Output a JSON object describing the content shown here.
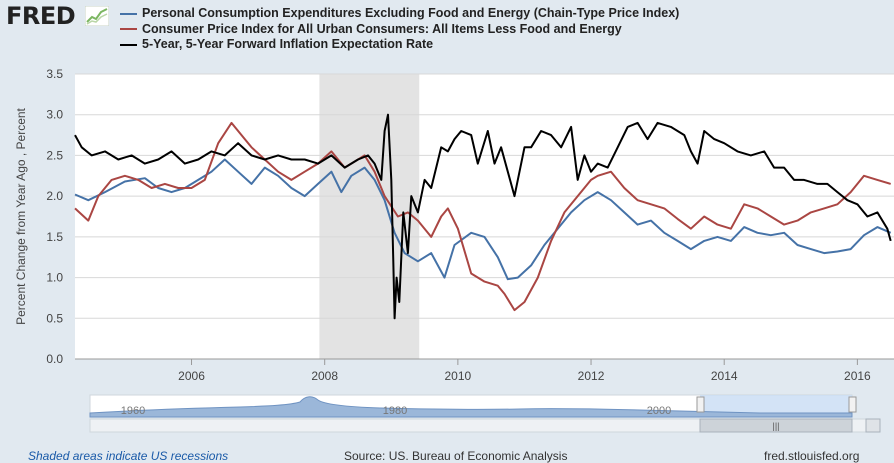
{
  "header": {
    "logo_text": "FRED",
    "logo_icon": "line-chart-icon"
  },
  "legend": [
    {
      "label": "Personal Consumption Expenditures Excluding Food and Energy (Chain-Type Price Index)",
      "color": "#4572a7"
    },
    {
      "label": "Consumer Price Index for All Urban Consumers: All Items Less Food and Energy",
      "color": "#aa4643"
    },
    {
      "label": "5-Year, 5-Year Forward Inflation Expectation Rate",
      "color": "#000000"
    }
  ],
  "chart_data": {
    "type": "line",
    "ylabel": "Percent Change from Year Ago , Percent",
    "ylim": [
      0,
      3.5
    ],
    "yticks": [
      "0.0",
      "0.5",
      "1.0",
      "1.5",
      "2.0",
      "2.5",
      "3.0",
      "3.5"
    ],
    "xlim": [
      2004.25,
      2016.55
    ],
    "xticks": [
      "2006",
      "2008",
      "2010",
      "2012",
      "2014",
      "2016"
    ],
    "grid": true,
    "recession": {
      "start": 2007.92,
      "end": 2009.42,
      "color": "#e3e3e3"
    },
    "series": [
      {
        "name": "Personal Consumption Expenditures Excluding Food and Energy (Chain-Type Price Index)",
        "color": "#4572a7",
        "x": [
          2004.25,
          2004.45,
          2004.7,
          2005.0,
          2005.3,
          2005.5,
          2005.7,
          2005.9,
          2006.1,
          2006.3,
          2006.5,
          2006.7,
          2006.9,
          2007.1,
          2007.3,
          2007.5,
          2007.7,
          2007.9,
          2008.1,
          2008.25,
          2008.4,
          2008.6,
          2008.75,
          2008.9,
          2009.05,
          2009.2,
          2009.4,
          2009.6,
          2009.8,
          2009.95,
          2010.2,
          2010.4,
          2010.6,
          2010.75,
          2010.9,
          2011.1,
          2011.3,
          2011.5,
          2011.7,
          2011.9,
          2012.1,
          2012.3,
          2012.5,
          2012.7,
          2012.9,
          2013.1,
          2013.3,
          2013.5,
          2013.7,
          2013.9,
          2014.1,
          2014.3,
          2014.5,
          2014.7,
          2014.9,
          2015.1,
          2015.3,
          2015.5,
          2015.7,
          2015.9,
          2016.1,
          2016.3,
          2016.5
        ],
        "values": [
          2.02,
          1.95,
          2.05,
          2.18,
          2.22,
          2.1,
          2.05,
          2.1,
          2.2,
          2.3,
          2.45,
          2.3,
          2.15,
          2.35,
          2.25,
          2.1,
          2.0,
          2.15,
          2.3,
          2.05,
          2.25,
          2.35,
          2.2,
          1.95,
          1.55,
          1.3,
          1.2,
          1.3,
          1.0,
          1.4,
          1.55,
          1.5,
          1.25,
          0.98,
          1.0,
          1.15,
          1.4,
          1.6,
          1.8,
          1.95,
          2.05,
          1.95,
          1.8,
          1.65,
          1.7,
          1.55,
          1.45,
          1.35,
          1.45,
          1.5,
          1.45,
          1.62,
          1.55,
          1.52,
          1.55,
          1.4,
          1.35,
          1.3,
          1.32,
          1.35,
          1.52,
          1.62,
          1.55
        ]
      },
      {
        "name": "Consumer Price Index for All Urban Consumers: All Items Less Food and Energy",
        "color": "#aa4643",
        "x": [
          2004.25,
          2004.45,
          2004.6,
          2004.8,
          2005.0,
          2005.2,
          2005.4,
          2005.6,
          2005.8,
          2006.0,
          2006.2,
          2006.4,
          2006.6,
          2006.8,
          2006.9,
          2007.1,
          2007.3,
          2007.5,
          2007.7,
          2007.9,
          2008.1,
          2008.3,
          2008.5,
          2008.6,
          2008.75,
          2008.9,
          2009.1,
          2009.25,
          2009.4,
          2009.6,
          2009.75,
          2009.85,
          2010.0,
          2010.2,
          2010.4,
          2010.6,
          2010.7,
          2010.85,
          2011.0,
          2011.2,
          2011.4,
          2011.6,
          2011.8,
          2012.0,
          2012.1,
          2012.3,
          2012.5,
          2012.7,
          2012.9,
          2013.1,
          2013.3,
          2013.5,
          2013.7,
          2013.9,
          2014.1,
          2014.3,
          2014.5,
          2014.7,
          2014.9,
          2015.1,
          2015.3,
          2015.5,
          2015.7,
          2015.9,
          2016.1,
          2016.3,
          2016.5
        ],
        "values": [
          1.85,
          1.7,
          2.0,
          2.2,
          2.25,
          2.2,
          2.1,
          2.15,
          2.1,
          2.1,
          2.2,
          2.65,
          2.9,
          2.7,
          2.6,
          2.45,
          2.3,
          2.2,
          2.3,
          2.4,
          2.55,
          2.35,
          2.45,
          2.5,
          2.3,
          2.0,
          1.75,
          1.8,
          1.7,
          1.5,
          1.75,
          1.85,
          1.6,
          1.05,
          0.95,
          0.9,
          0.8,
          0.6,
          0.7,
          1.0,
          1.45,
          1.8,
          2.0,
          2.2,
          2.25,
          2.3,
          2.1,
          1.95,
          1.9,
          1.85,
          1.72,
          1.6,
          1.75,
          1.65,
          1.6,
          1.9,
          1.85,
          1.75,
          1.65,
          1.7,
          1.8,
          1.85,
          1.9,
          2.05,
          2.25,
          2.2,
          2.15
        ]
      },
      {
        "name": "5-Year, 5-Year Forward Inflation Expectation Rate",
        "color": "#000000",
        "x": [
          2004.25,
          2004.35,
          2004.5,
          2004.7,
          2004.9,
          2005.1,
          2005.3,
          2005.5,
          2005.7,
          2005.9,
          2006.1,
          2006.3,
          2006.5,
          2006.7,
          2006.9,
          2007.1,
          2007.3,
          2007.5,
          2007.7,
          2007.9,
          2008.1,
          2008.3,
          2008.5,
          2008.65,
          2008.75,
          2008.85,
          2008.9,
          2008.95,
          2009.0,
          2009.03,
          2009.05,
          2009.08,
          2009.12,
          2009.18,
          2009.25,
          2009.3,
          2009.4,
          2009.5,
          2009.6,
          2009.75,
          2009.85,
          2009.95,
          2010.05,
          2010.2,
          2010.3,
          2010.45,
          2010.55,
          2010.65,
          2010.75,
          2010.85,
          2011.0,
          2011.1,
          2011.25,
          2011.4,
          2011.55,
          2011.7,
          2011.8,
          2011.9,
          2012.0,
          2012.1,
          2012.25,
          2012.4,
          2012.55,
          2012.7,
          2012.85,
          2013.0,
          2013.2,
          2013.4,
          2013.5,
          2013.6,
          2013.7,
          2013.85,
          2014.0,
          2014.2,
          2014.4,
          2014.6,
          2014.75,
          2014.9,
          2015.05,
          2015.2,
          2015.4,
          2015.55,
          2015.7,
          2015.85,
          2016.0,
          2016.15,
          2016.3,
          2016.45,
          2016.5
        ],
        "values": [
          2.75,
          2.6,
          2.5,
          2.55,
          2.45,
          2.5,
          2.4,
          2.45,
          2.55,
          2.4,
          2.45,
          2.55,
          2.5,
          2.65,
          2.5,
          2.45,
          2.5,
          2.45,
          2.45,
          2.4,
          2.5,
          2.35,
          2.45,
          2.5,
          2.4,
          2.2,
          2.8,
          3.0,
          2.2,
          1.2,
          0.5,
          1.0,
          0.7,
          1.8,
          1.3,
          2.0,
          1.8,
          2.2,
          2.1,
          2.6,
          2.55,
          2.7,
          2.8,
          2.75,
          2.4,
          2.8,
          2.4,
          2.6,
          2.3,
          2.0,
          2.6,
          2.6,
          2.8,
          2.75,
          2.6,
          2.85,
          2.2,
          2.5,
          2.3,
          2.4,
          2.35,
          2.6,
          2.85,
          2.9,
          2.7,
          2.9,
          2.85,
          2.75,
          2.55,
          2.4,
          2.8,
          2.7,
          2.65,
          2.55,
          2.5,
          2.55,
          2.35,
          2.35,
          2.2,
          2.2,
          2.15,
          2.15,
          2.05,
          1.95,
          1.9,
          1.75,
          1.8,
          1.6,
          1.45
        ]
      }
    ]
  },
  "navigator": {
    "labels": [
      "1960",
      "1980",
      "2000"
    ],
    "scroll_grip": "|||"
  },
  "footer": {
    "note": "Shaded areas indicate US recessions",
    "source": "Source: US. Bureau of Economic Analysis",
    "site": "fred.stlouisfed.org"
  }
}
